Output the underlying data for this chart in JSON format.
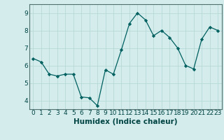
{
  "x": [
    0,
    1,
    2,
    3,
    4,
    5,
    6,
    7,
    8,
    9,
    10,
    11,
    12,
    13,
    14,
    15,
    16,
    17,
    18,
    19,
    20,
    21,
    22,
    23
  ],
  "y": [
    6.4,
    6.2,
    5.5,
    5.4,
    5.5,
    5.5,
    4.2,
    4.15,
    3.7,
    5.75,
    5.5,
    6.9,
    8.4,
    9.0,
    8.6,
    7.7,
    8.0,
    7.6,
    7.0,
    6.0,
    5.8,
    7.5,
    8.2,
    8.0
  ],
  "title": "",
  "xlabel": "Humidex (Indice chaleur)",
  "ylabel": "",
  "ylim": [
    3.5,
    9.5
  ],
  "xlim": [
    -0.5,
    23.5
  ],
  "bg_color": "#d4ecec",
  "line_color": "#006060",
  "grid_color": "#b8d8d8",
  "yticks": [
    4,
    5,
    6,
    7,
    8,
    9
  ],
  "xticks": [
    0,
    1,
    2,
    3,
    4,
    5,
    6,
    7,
    8,
    9,
    10,
    11,
    12,
    13,
    14,
    15,
    16,
    17,
    18,
    19,
    20,
    21,
    22,
    23
  ],
  "tick_fontsize": 6.5,
  "xlabel_fontsize": 7.5
}
